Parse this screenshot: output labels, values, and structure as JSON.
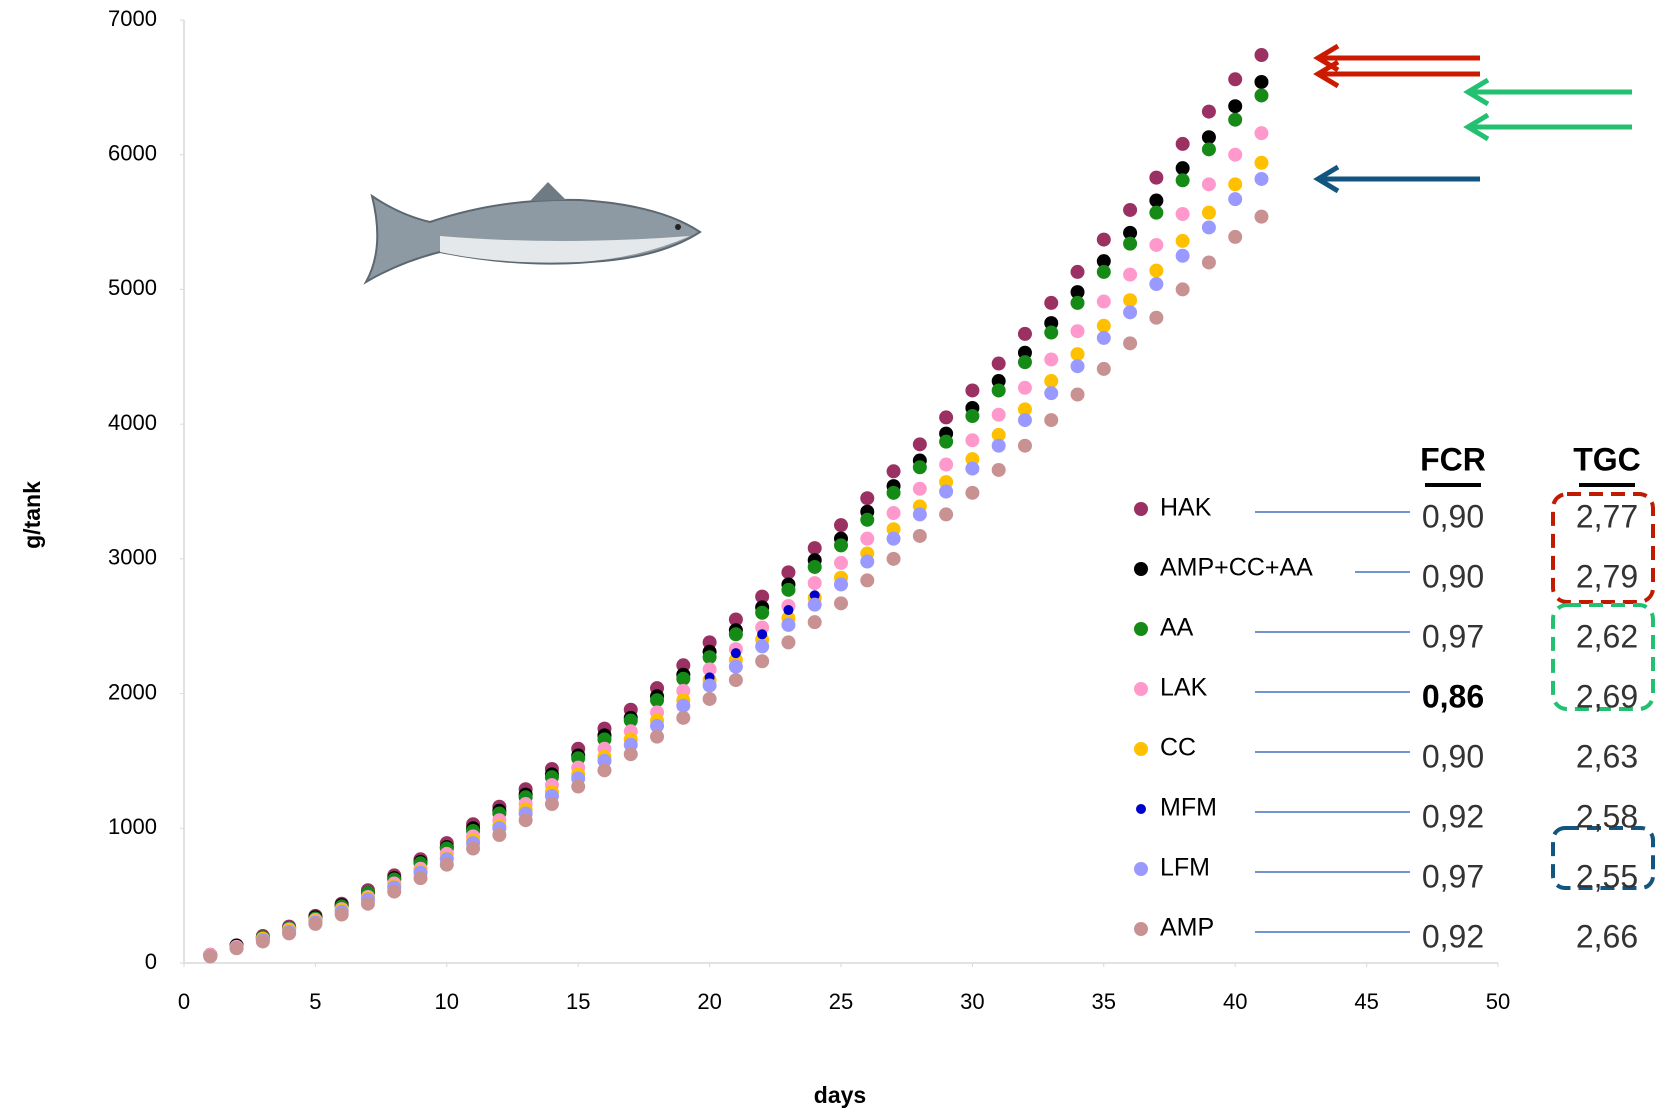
{
  "chart_data": {
    "type": "scatter",
    "xlabel": "days",
    "ylabel": "g/tank",
    "xlim": [
      0,
      50
    ],
    "xticks": [
      0,
      5,
      10,
      15,
      20,
      25,
      30,
      35,
      40,
      45,
      50
    ],
    "ylim": [
      0,
      7000
    ],
    "yticks": [
      0,
      1000,
      2000,
      3000,
      4000,
      5000,
      6000,
      7000
    ],
    "x": [
      1,
      2,
      3,
      4,
      5,
      6,
      7,
      8,
      9,
      10,
      11,
      12,
      13,
      14,
      15,
      16,
      17,
      18,
      19,
      20,
      21,
      22,
      23,
      24,
      25,
      26,
      27,
      28,
      29,
      30,
      31,
      32,
      33,
      34,
      35,
      36,
      37,
      38,
      39,
      40,
      41
    ],
    "table_headers": [
      "FCR",
      "TGC"
    ],
    "series": [
      {
        "name": "HAK",
        "color": "#9b3063",
        "fcr": "0,90",
        "tgc": "2,77",
        "values": [
          60,
          130,
          200,
          270,
          350,
          440,
          540,
          650,
          770,
          890,
          1030,
          1160,
          1290,
          1440,
          1590,
          1740,
          1880,
          2040,
          2210,
          2380,
          2550,
          2720,
          2900,
          3080,
          3250,
          3450,
          3650,
          3850,
          4050,
          4250,
          4450,
          4670,
          4900,
          5130,
          5370,
          5590,
          5830,
          6080,
          6320,
          6560,
          6740
        ]
      },
      {
        "name": "AMP+CC+AA",
        "color": "#000000",
        "fcr": "0,90",
        "tgc": "2,79",
        "values": [
          60,
          130,
          190,
          260,
          340,
          430,
          520,
          630,
          750,
          860,
          1000,
          1130,
          1250,
          1400,
          1540,
          1690,
          1820,
          1980,
          2140,
          2310,
          2470,
          2640,
          2810,
          2990,
          3150,
          3350,
          3540,
          3730,
          3930,
          4120,
          4320,
          4530,
          4750,
          4980,
          5210,
          5420,
          5660,
          5900,
          6130,
          6360,
          6540
        ]
      },
      {
        "name": "AA",
        "color": "#168a16",
        "fcr": "0,97",
        "tgc": "2,62",
        "values": [
          60,
          120,
          190,
          260,
          330,
          420,
          520,
          620,
          740,
          850,
          980,
          1110,
          1230,
          1380,
          1520,
          1660,
          1800,
          1950,
          2110,
          2270,
          2440,
          2600,
          2770,
          2940,
          3100,
          3290,
          3490,
          3680,
          3870,
          4060,
          4250,
          4460,
          4680,
          4900,
          5130,
          5340,
          5570,
          5810,
          6040,
          6260,
          6440
        ]
      },
      {
        "name": "LAK",
        "color": "#ff99cc",
        "fcr": "0,86",
        "tgc": "2,69",
        "values": [
          60,
          120,
          180,
          250,
          320,
          400,
          490,
          590,
          700,
          810,
          940,
          1060,
          1180,
          1320,
          1450,
          1590,
          1720,
          1860,
          2020,
          2180,
          2330,
          2490,
          2650,
          2820,
          2970,
          3150,
          3340,
          3520,
          3700,
          3880,
          4070,
          4270,
          4480,
          4690,
          4910,
          5110,
          5330,
          5560,
          5780,
          6000,
          6160
        ]
      },
      {
        "name": "CC",
        "color": "#ffc000",
        "fcr": "0,90",
        "tgc": "2,63",
        "values": [
          50,
          110,
          180,
          240,
          310,
          390,
          480,
          570,
          680,
          780,
          910,
          1020,
          1140,
          1270,
          1400,
          1530,
          1660,
          1800,
          1950,
          2100,
          2250,
          2400,
          2560,
          2710,
          2860,
          3040,
          3220,
          3390,
          3570,
          3740,
          3920,
          4110,
          4320,
          4520,
          4730,
          4920,
          5140,
          5360,
          5570,
          5780,
          5940
        ]
      },
      {
        "name": "MFM",
        "color": "#0000cc",
        "fcr": "0,92",
        "tgc": "2,58",
        "values": [
          50,
          110,
          170,
          230,
          300,
          380,
          470,
          560,
          670,
          770,
          890,
          1000,
          1110,
          1240,
          1370,
          1500,
          1620,
          1760,
          1910,
          2120,
          2300,
          2440,
          2620,
          2730,
          2810,
          2980,
          3150,
          3330,
          3500,
          3670,
          3840,
          4030,
          4230,
          4430,
          4640,
          4830,
          5040,
          5250,
          5460,
          5670,
          5820
        ]
      },
      {
        "name": "LFM",
        "color": "#9999ff",
        "fcr": "0,97",
        "tgc": "2,55",
        "values": [
          50,
          110,
          170,
          230,
          300,
          380,
          470,
          560,
          670,
          770,
          890,
          1000,
          1110,
          1240,
          1370,
          1500,
          1620,
          1760,
          1910,
          2060,
          2200,
          2350,
          2510,
          2660,
          2810,
          2980,
          3150,
          3330,
          3500,
          3670,
          3840,
          4030,
          4230,
          4430,
          4640,
          4830,
          5040,
          5250,
          5460,
          5670,
          5820
        ]
      },
      {
        "name": "AMP",
        "color": "#c99292",
        "fcr": "0,92",
        "tgc": "2,66",
        "values": [
          50,
          110,
          160,
          220,
          290,
          360,
          440,
          530,
          630,
          730,
          850,
          950,
          1060,
          1180,
          1310,
          1430,
          1550,
          1680,
          1820,
          1960,
          2100,
          2240,
          2380,
          2530,
          2670,
          2840,
          3000,
          3170,
          3330,
          3490,
          3660,
          3840,
          4030,
          4220,
          4410,
          4600,
          4790,
          5000,
          5200,
          5390,
          5540
        ]
      }
    ]
  }
}
